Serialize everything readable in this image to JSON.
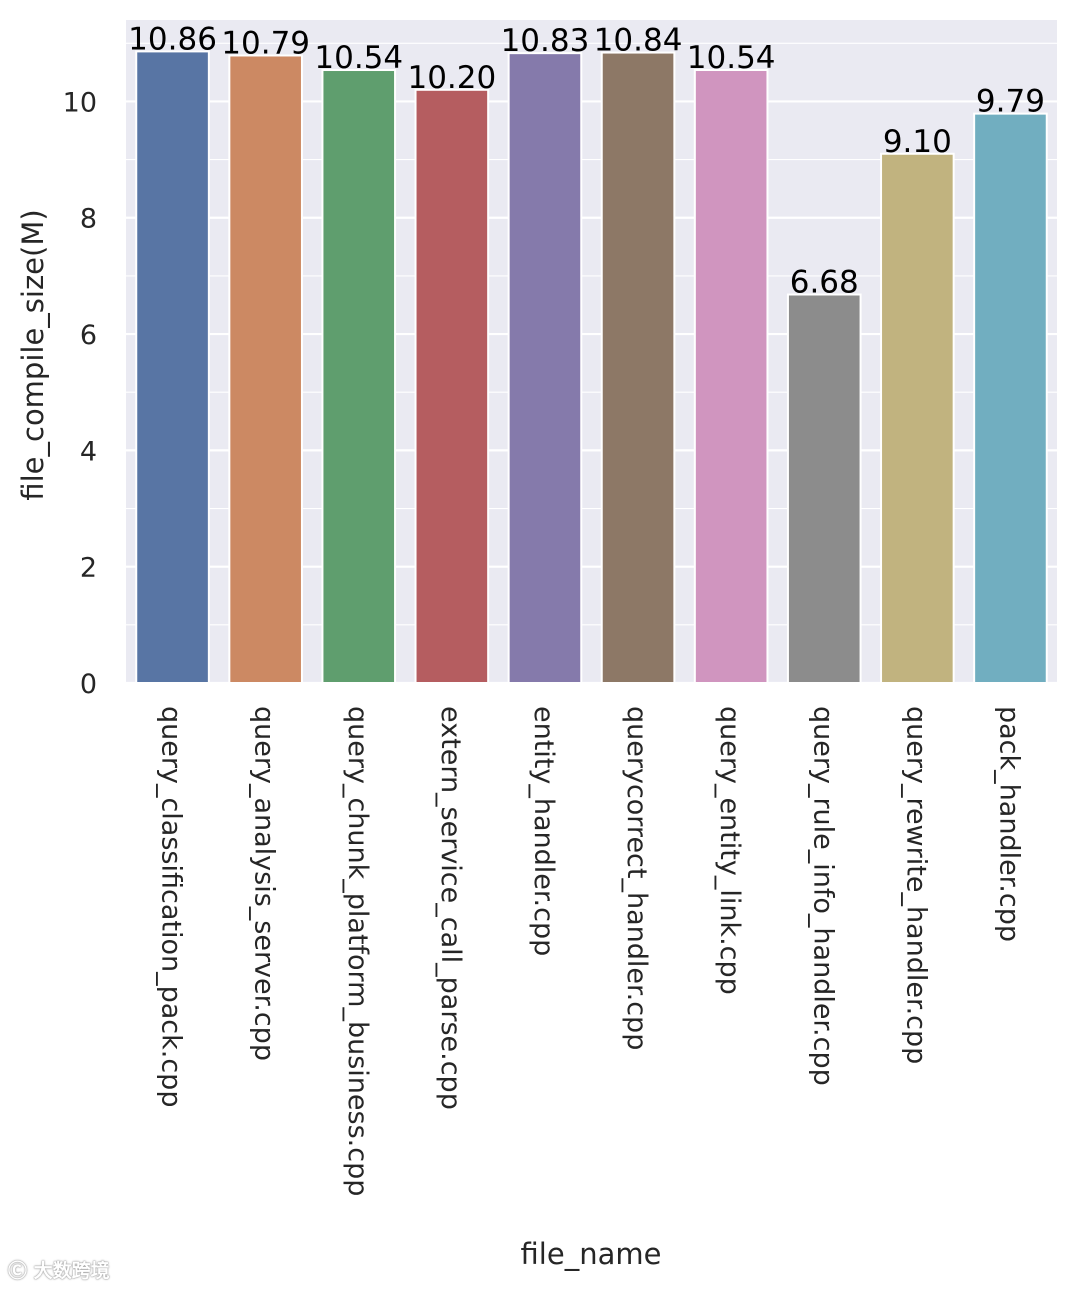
{
  "chart_data": {
    "type": "bar",
    "title": "",
    "xlabel": "file_name",
    "ylabel": "file_compile_size(M)",
    "ylim": [
      0,
      11.4
    ],
    "yticks": [
      0,
      2,
      4,
      6,
      8,
      10
    ],
    "grid": true,
    "categories": [
      "query_classification_pack.cpp",
      "query_analysis_server.cpp",
      "query_chunk_platform_business.cpp",
      "extern_service_call_parse.cpp",
      "entity_handler.cpp",
      "querycorrect_handler.cpp",
      "query_entity_link.cpp",
      "query_rule_info_handler.cpp",
      "query_rewrite_handler.cpp",
      "pack_handler.cpp"
    ],
    "values": [
      10.86,
      10.79,
      10.54,
      10.2,
      10.83,
      10.84,
      10.54,
      6.68,
      9.1,
      9.79
    ],
    "value_labels": [
      "10.86",
      "10.79",
      "10.54",
      "10.20",
      "10.83",
      "10.84",
      "10.54",
      "6.68",
      "9.10",
      "9.79"
    ],
    "colors": [
      "#5875a4",
      "#cc8963",
      "#5f9e6e",
      "#b55d60",
      "#857aab",
      "#8d7866",
      "#d095bf",
      "#8c8c8c",
      "#c1b37f",
      "#71aec0"
    ],
    "background": "#eaeaf2"
  },
  "watermark": "大数跨境"
}
